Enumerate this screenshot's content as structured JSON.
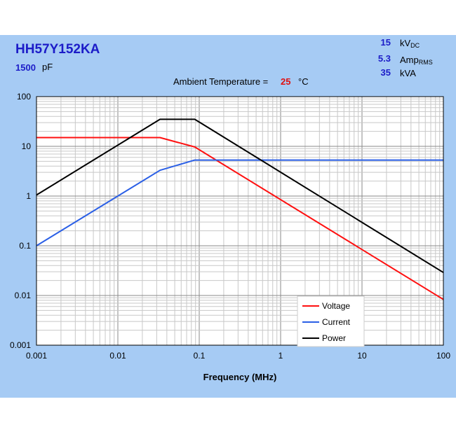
{
  "header": {
    "part_number": "HH57Y152KA",
    "capacitance_value": "1500",
    "capacitance_unit": "pF",
    "ratings": [
      {
        "value": "15",
        "unit": "kV",
        "unit_sub": "DC"
      },
      {
        "value": "5.3",
        "unit": "Amp",
        "unit_sub": "RMS"
      },
      {
        "value": "35",
        "unit": "kVA",
        "unit_sub": ""
      }
    ],
    "ambient_label": "Ambient Temperature =",
    "ambient_value": "25",
    "ambient_unit": "°C"
  },
  "chart_data": {
    "type": "line",
    "title": "",
    "xlabel": "Frequency (MHz)",
    "ylabel": "",
    "x_scale": "log",
    "y_scale": "log",
    "xlim": [
      0.001,
      100
    ],
    "ylim": [
      0.001,
      100
    ],
    "x_ticks": [
      0.001,
      0.01,
      0.1,
      1,
      10,
      100
    ],
    "x_tick_labels": [
      "0.001",
      "0.01",
      "0.1",
      "1",
      "10",
      "100"
    ],
    "y_ticks": [
      0.001,
      0.01,
      0.1,
      1,
      10,
      100
    ],
    "y_tick_labels": [
      "0.001",
      "0.01",
      "0.1",
      "1",
      "10",
      "100"
    ],
    "grid": true,
    "legend_position": "bottom-center",
    "series": [
      {
        "name": "Voltage",
        "color": "#ff1010",
        "points": [
          [
            0.001,
            15
          ],
          [
            0.033,
            15
          ],
          [
            0.088,
            9.7
          ],
          [
            100,
            0.0083
          ]
        ]
      },
      {
        "name": "Current",
        "color": "#2a5fe6",
        "points": [
          [
            0.001,
            0.1
          ],
          [
            0.033,
            3.3
          ],
          [
            0.088,
            5.3
          ],
          [
            100,
            5.3
          ]
        ]
      },
      {
        "name": "Power",
        "color": "#000000",
        "points": [
          [
            0.001,
            1.05
          ],
          [
            0.033,
            35
          ],
          [
            0.088,
            35
          ],
          [
            100,
            0.029
          ]
        ]
      }
    ]
  }
}
